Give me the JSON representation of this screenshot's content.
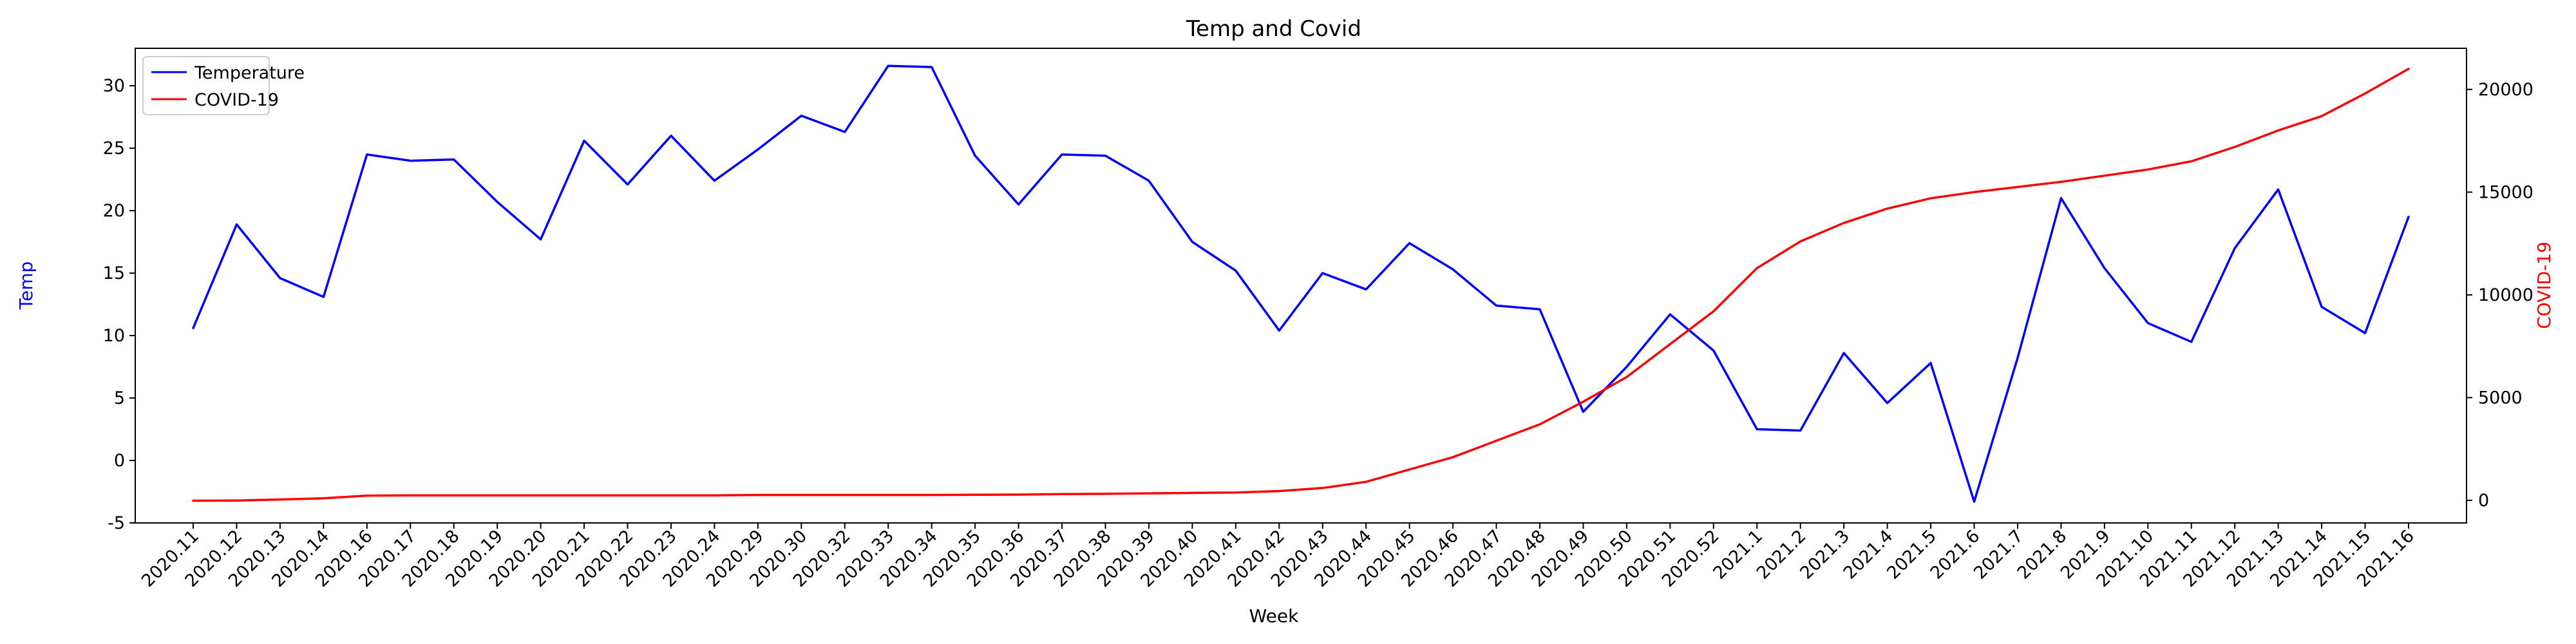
{
  "chart_data": {
    "type": "line",
    "title": "Temp and Covid",
    "xlabel": "Week",
    "ylabel_left": "Temp",
    "ylabel_right": "COVID-19",
    "ylim_left": [
      -5,
      33
    ],
    "ylim_right": [
      -1100,
      22000
    ],
    "yticks_left": [
      -5,
      0,
      5,
      10,
      15,
      20,
      25,
      30
    ],
    "yticks_right": [
      0,
      5000,
      10000,
      15000,
      20000
    ],
    "legend_position": "top-left",
    "grid": false,
    "categories": [
      "2020.11",
      "2020.12",
      "2020.13",
      "2020.14",
      "2020.16",
      "2020.17",
      "2020.18",
      "2020.19",
      "2020.20",
      "2020.21",
      "2020.22",
      "2020.23",
      "2020.24",
      "2020.29",
      "2020.30",
      "2020.32",
      "2020.33",
      "2020.34",
      "2020.35",
      "2020.36",
      "2020.37",
      "2020.38",
      "2020.39",
      "2020.40",
      "2020.41",
      "2020.42",
      "2020.43",
      "2020.44",
      "2020.45",
      "2020.46",
      "2020.47",
      "2020.48",
      "2020.49",
      "2020.50",
      "2020.51",
      "2020.52",
      "2021.1",
      "2021.2",
      "2021.3",
      "2021.4",
      "2021.5",
      "2021.6",
      "2021.7",
      "2021.8",
      "2021.9",
      "2021.10",
      "2021.11",
      "2021.12",
      "2021.13",
      "2021.14",
      "2021.15",
      "2021.16"
    ],
    "series": [
      {
        "name": "Temperature",
        "axis": "left",
        "color": "#0000ff",
        "values": [
          10.6,
          18.9,
          14.6,
          13.1,
          24.5,
          24.0,
          24.1,
          20.7,
          17.7,
          25.6,
          22.1,
          26.0,
          22.4,
          24.9,
          27.6,
          26.3,
          31.6,
          31.5,
          24.4,
          20.5,
          24.5,
          24.4,
          22.4,
          17.5,
          15.2,
          10.4,
          15.0,
          13.7,
          17.4,
          15.3,
          12.4,
          12.1,
          3.9,
          7.5,
          11.7,
          8.8,
          2.5,
          2.4,
          8.6,
          4.6,
          7.8,
          -3.3,
          8.2,
          21.0,
          15.4,
          11.0,
          9.5,
          17.0,
          21.7,
          12.3,
          10.2,
          19.5
        ]
      },
      {
        "name": "COVID-19",
        "axis": "right",
        "color": "#ff0000",
        "values": [
          -20,
          -10,
          40,
          100,
          230,
          240,
          240,
          240,
          240,
          240,
          240,
          240,
          240,
          260,
          260,
          260,
          260,
          260,
          270,
          280,
          300,
          320,
          340,
          360,
          380,
          450,
          600,
          900,
          1500,
          2100,
          2900,
          3700,
          4800,
          6000,
          7600,
          9200,
          11300,
          12600,
          13500,
          14200,
          14700,
          15000,
          15250,
          15500,
          15800,
          16100,
          16500,
          17200,
          18000,
          18700,
          19800,
          21000
        ]
      }
    ]
  }
}
